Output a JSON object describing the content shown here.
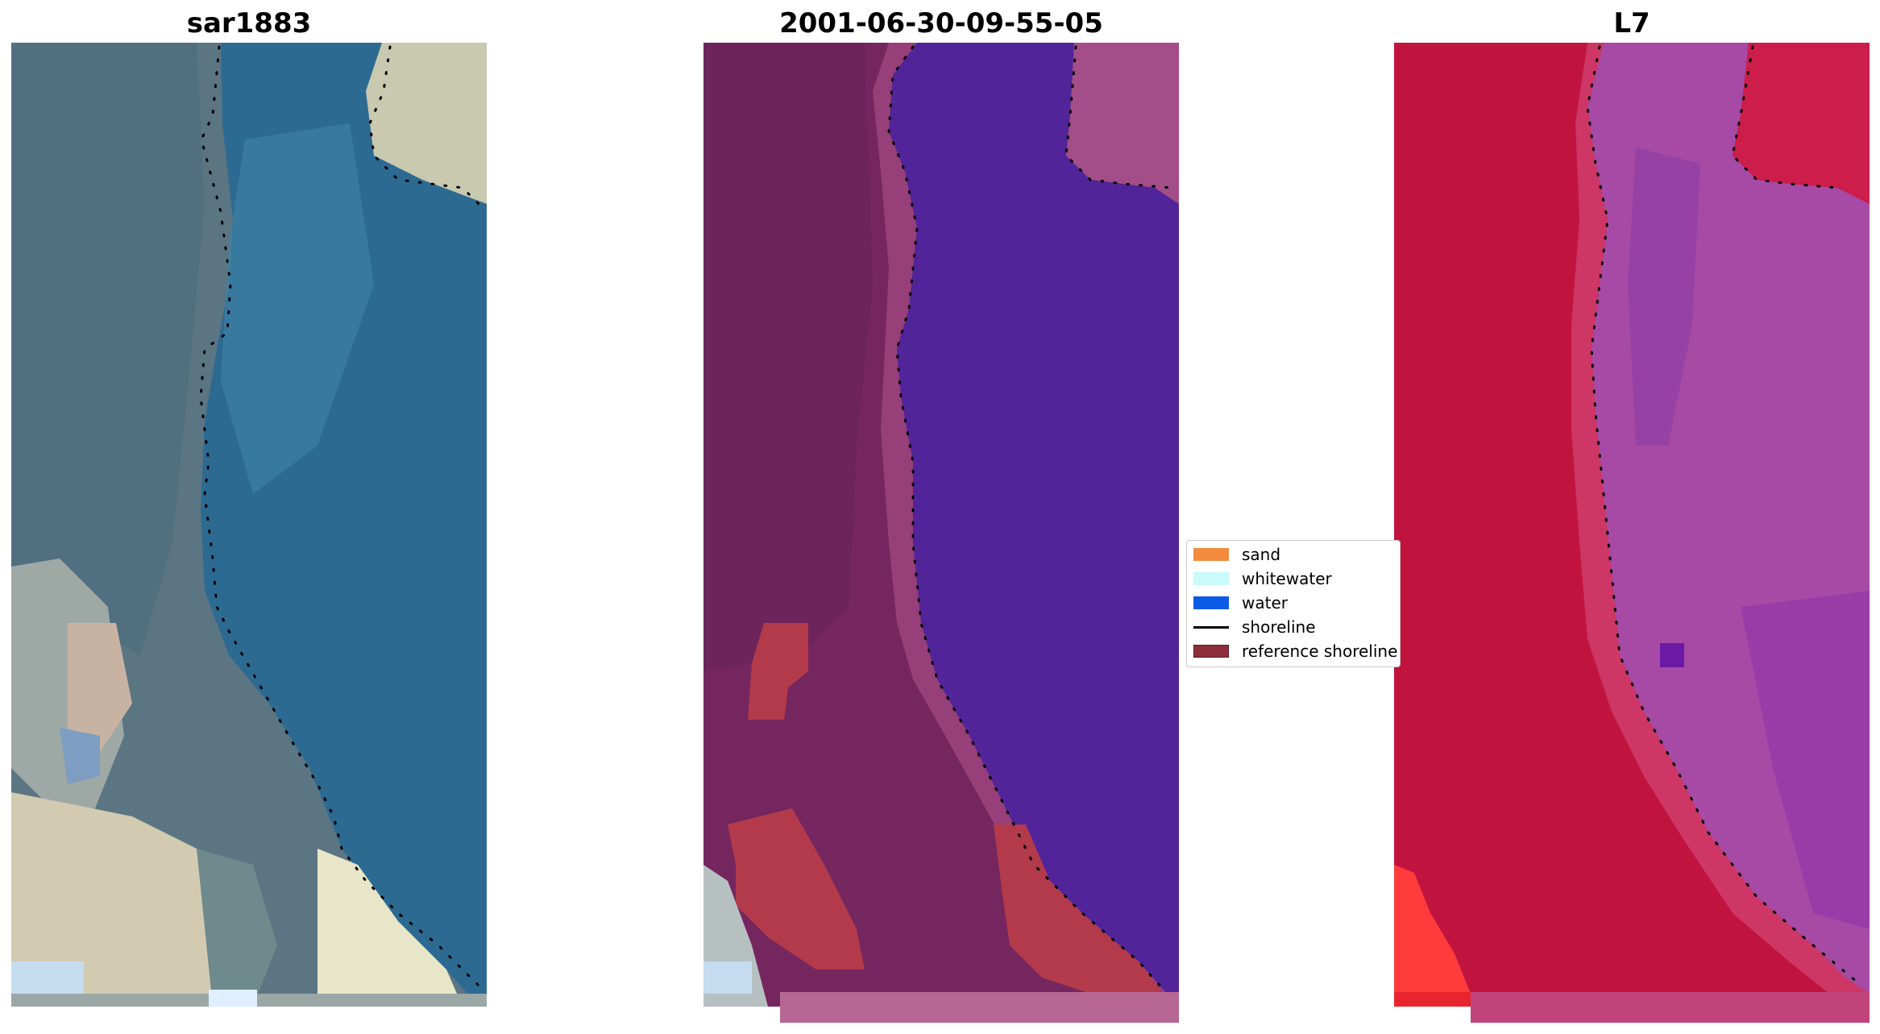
{
  "panels": [
    {
      "title": "sar1883"
    },
    {
      "title": "2001-06-30-09-55-05"
    },
    {
      "title": "L7"
    }
  ],
  "legend": {
    "items": [
      {
        "label": "sand",
        "color": "#f28c3c",
        "kind": "patch"
      },
      {
        "label": "whitewater",
        "color": "#c8fbfa",
        "kind": "patch"
      },
      {
        "label": "water",
        "color": "#0b5be6",
        "kind": "patch"
      },
      {
        "label": "shoreline",
        "color": "#000000",
        "kind": "line"
      },
      {
        "label": "reference shoreline",
        "color": "#8c2f3a",
        "kind": "patch"
      }
    ]
  },
  "colors": {
    "rgb_land": "#5b7583",
    "rgb_water": "#2d6a92",
    "rgb_sand": "#d8d2b8",
    "class_land": "#75265f",
    "class_water": "#522499",
    "class_sand_overlay": "#b33a4a",
    "class_bottom_strip": "#b76794",
    "ndwi_land": "#c0143f",
    "ndwi_water": "#a64aa6",
    "ndwi_hot": "#ff2e2e",
    "shoreline_dots": "#000000"
  }
}
